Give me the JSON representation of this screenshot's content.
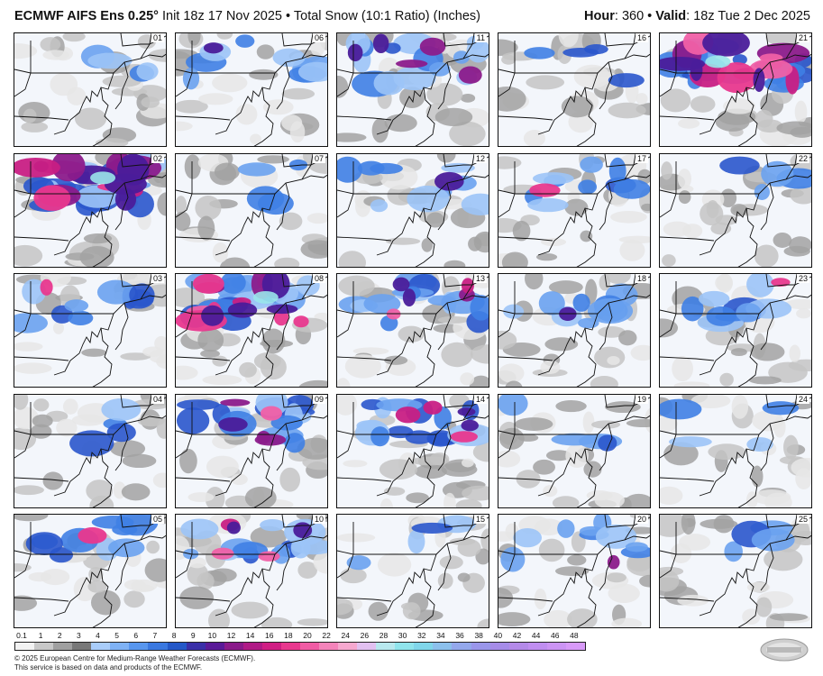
{
  "header": {
    "model": "ECMWF AIFS Ens 0.25°",
    "init_label": "Init",
    "init": "18z 17 Nov 2025",
    "separator": "•",
    "product": "Total Snow (10:1 Ratio) (Inches)",
    "hour_label": "Hour",
    "hour": "360",
    "valid_label": "Valid",
    "valid": "18z Tue 2 Dec 2025"
  },
  "members": [
    "01",
    "06",
    "11",
    "16",
    "21",
    "02",
    "07",
    "12",
    "17",
    "22",
    "03",
    "08",
    "13",
    "18",
    "23",
    "04",
    "09",
    "14",
    "19",
    "24",
    "05",
    "10",
    "15",
    "20",
    "25"
  ],
  "member_intensity": {
    "01": "light",
    "06": "moderate",
    "11": "heavy",
    "16": "light",
    "21": "very-heavy",
    "02": "very-heavy",
    "07": "light",
    "12": "moderate",
    "17": "moderate",
    "22": "light",
    "03": "moderate",
    "08": "very-heavy",
    "13": "heavy",
    "18": "moderate",
    "23": "moderate",
    "04": "light",
    "09": "heavy",
    "14": "heavy",
    "19": "light",
    "24": "light",
    "05": "moderate",
    "10": "heavy",
    "15": "light",
    "20": "moderate",
    "25": "light"
  },
  "colorbar": {
    "labels": [
      "0.1",
      "1",
      "2",
      "3",
      "4",
      "5",
      "6",
      "7",
      "8",
      "9",
      "10",
      "12",
      "14",
      "16",
      "18",
      "20",
      "22",
      "24",
      "26",
      "28",
      "30",
      "32",
      "34",
      "36",
      "38",
      "40",
      "42",
      "44",
      "46",
      "48"
    ],
    "colors": [
      "#f2f2f2",
      "#c8c8c8",
      "#a0a0a0",
      "#787878",
      "#a9cdfa",
      "#7fb2f5",
      "#5896ee",
      "#3a78e0",
      "#2458c8",
      "#3a2fa8",
      "#5a1a98",
      "#8a1a8a",
      "#b01a86",
      "#d01e84",
      "#e8388e",
      "#f05ca4",
      "#f484ba",
      "#f6a8cf",
      "#e2c0f0",
      "#b8e8ee",
      "#90e4ec",
      "#80d6ea",
      "#8cc0ec",
      "#94a8ec",
      "#9a96ea",
      "#a68ce8",
      "#b48ae8",
      "#c08ef0",
      "#cc94f4",
      "#d89af8"
    ]
  },
  "credit": {
    "line1": "© 2025 European Centre for Medium-Range Weather Forecasts (ECMWF).",
    "line2": "This service is based on data and products of the ECMWF."
  },
  "logo": {
    "text": "WeatherBELL"
  }
}
